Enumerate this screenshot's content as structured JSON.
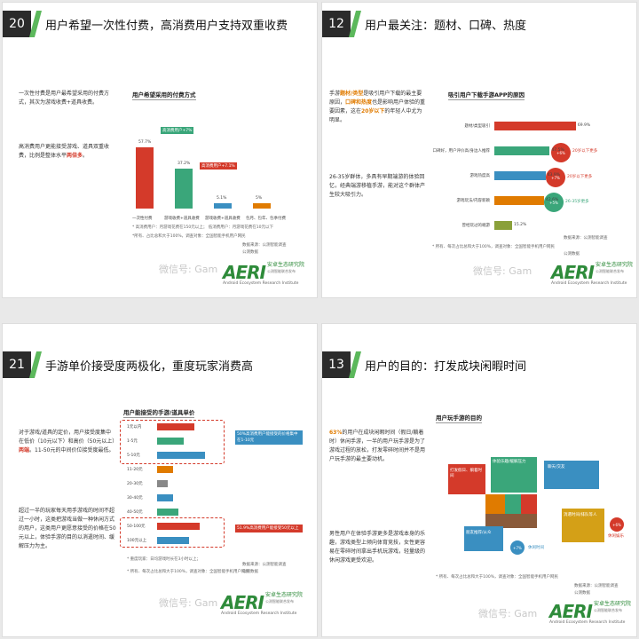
{
  "slide20": {
    "num": "20",
    "title": "用户希望一次性付费，高消费用户支持双重收费",
    "p1": "一次性付费是用户最希望采用的付费方式，其次为游戏收费+道具收费。",
    "p2a": "高消费用户更能接受游戏、道具双重收费，比例是整体水平",
    "p2b": "两倍多",
    "p2c": "。",
    "chart_title": "用户希望采用的付费方式",
    "callout1": "高消费用户+7%",
    "callout2": "高消费用户+7.1%",
    "bar_labels": [
      "一次性付费",
      "游戏收费+道具收费",
      "游戏收费+道具收费",
      "包月、包年、包季付费"
    ],
    "legend1": "* 高消费用户：月游戏花费在150元以上；",
    "legend2": "低消费用户：月游戏花费在10元以下",
    "note": "*所有、占比总和大于100%，调查对象：全国智能手机用户网民",
    "source": "数据来源：公测智能调查",
    "source2": "公测数据",
    "watermark": "微信号: Gam"
  },
  "slide12": {
    "num": "12",
    "title": "用户最关注：题材、口碑、热度",
    "p1a": "手游",
    "p1b": "题材/类型",
    "p1c": "是吸引用户下载的最主要原因，",
    "p1d": "口碑和热度",
    "p1e": "也是影响用户体验的重要因素，这在",
    "p1f": "20岁以下",
    "p1g": "的年轻人中尤为明显。",
    "p2": "26-35岁群体，多具有早期端游的体验回忆，经典端游移植手游，能对这个群体产生较大吸引力。",
    "chart_title": "吸引用户下载手游APP的原因",
    "bar_labels": [
      "题材/类型吸引",
      "口碑好，用户评价高/身边人推荐",
      "游戏热度高",
      "游戏玩法/内容新颖",
      "曾经玩过的端游"
    ],
    "circle_tags": [
      "20岁以下更多",
      "20岁以下更多",
      "26-35岁更多"
    ],
    "note": "* 所有、每次占比总和大于100%，调查对象：全国智能手机用户网民",
    "source": "数据来源：公测智能调查",
    "source2": "公测数据",
    "watermark": "微信号: Gam"
  },
  "slide21": {
    "num": "21",
    "title": "手游单价接受度两极化，重度玩家消费高",
    "p1a": "对于游戏/道具的定价，用户接受度集中在低价（10元以下）和高价（50元以上）",
    "p1b": "两端",
    "p1c": "。11-50元的中间价位接受度最低。",
    "p2": "超过一半的玩家每天用手游戏的时间不超过一小时，这类把游戏当做一种休闲方式的用户，这类用户更愿意接受的价格在50元以上，体验手游的目的以消遣时间、缓解压力为主。",
    "chart_title": "用户能接受的手游/道具单价",
    "price_labels": [
      "1元以内",
      "1-5元",
      "5-10元",
      "11-20元",
      "20-30元",
      "30-40元",
      "40-50元",
      "50-100元",
      "100元以上"
    ],
    "call1": "50%高消费用户能接受的价格集中在1-10元",
    "call2": "51.9%高消费用户能接受50元以上",
    "legend": "* 重度玩家：日均游戏时长在3小时以上；",
    "note": "* 所有、每次占比总和大于100%，调查对象：全国智能手机用户网民",
    "source": "数据来源：公测智能调查",
    "source2": "公测数据",
    "watermark": "微信号: Gam"
  },
  "slide13": {
    "num": "13",
    "title": "用户的目的：打发成块闲暇时间",
    "p1a": "63%",
    "p1b": "的用户在成块闲暇时间（假日/躺着时）休闲手游，一半的用户玩手游是为了游戏过程的放松，打发零碎时间并不是用户玩手游的最主要动机。",
    "p2": "男性用户在体验手游更多是游戏本身的乐趣，游戏类型上倾向体育竞技，女性更容易在零碎时间拿出手机玩游戏，轻量级的休闲游戏更受欢迎。",
    "chart_title": "用户玩手游的目的",
    "segments": [
      "打发假日、躺着时间",
      "体验乐趣/缓解压力",
      "聊天/交友",
      "消遣时间/排队等人",
      "朋友推荐/从众",
      "其他"
    ],
    "tag1": "休闲娱乐",
    "tag2": "休闲时间",
    "note": "* 所有、每次占比总和大于100%，调查对象：全国智能手机用户网民",
    "source": "数据来源：公测智能调查",
    "source2": "公测数据",
    "watermark": "微信号: Gam"
  },
  "logo": {
    "mark": "AERI",
    "cn": "安卓生态研究院",
    "cn2": "公测智能联合发布",
    "sub": "Android Ecosystem Research Institute"
  },
  "chart_data": [
    {
      "type": "bar",
      "title": "用户希望采用的付费方式",
      "categories": [
        "一次性付费",
        "游戏收费+道具收费",
        "游戏收费+道具收费",
        "包月、包年、包季付费"
      ],
      "series": [
        {
          "values": [
            57.7,
            37.2,
            5.1,
            5
          ]
        }
      ]
    },
    {
      "type": "bar",
      "title": "吸引用户下载手游APP的原因",
      "categories": [
        "题材/类型吸引",
        "口碑好，用户评价高/身边人推荐",
        "游戏热度高",
        "游戏玩法/内容新颖",
        "曾经玩过的端游"
      ],
      "series": [
        {
          "values": [
            69.9,
            47.5,
            43.9,
            42.6,
            15.2
          ]
        }
      ]
    }
  ]
}
